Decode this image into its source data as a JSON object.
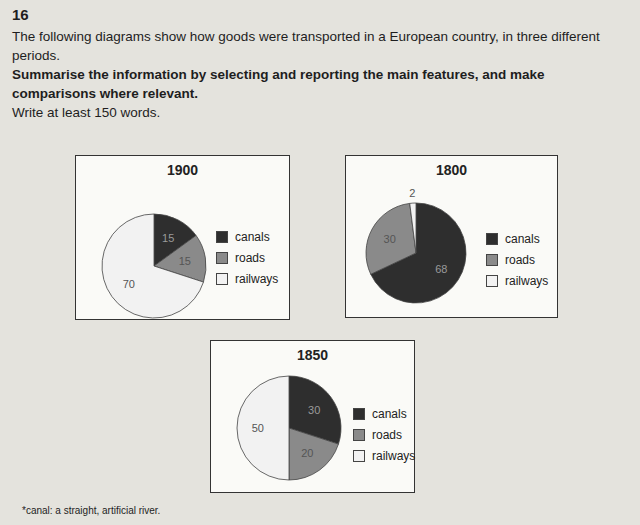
{
  "page": {
    "number": "16",
    "intro": "The following diagrams show how goods were transported in a European country, in three different periods.",
    "task": "Summarise the information by selecting and reporting the main features, and make comparisons where relevant.",
    "length": "Write at least 150 words.",
    "footnote": "*canal: a straight, artificial river."
  },
  "chart_data": [
    {
      "type": "pie",
      "title": "1900",
      "categories": [
        "canals",
        "roads",
        "railways"
      ],
      "values": [
        15,
        15,
        70
      ],
      "colors": [
        "#2e2e2e",
        "#8a8a8a",
        "#f2f2f2"
      ],
      "data_labels": true,
      "legend": "right"
    },
    {
      "type": "pie",
      "title": "1800",
      "categories": [
        "canals",
        "roads",
        "railways"
      ],
      "values": [
        68,
        30,
        2
      ],
      "colors": [
        "#2e2e2e",
        "#8a8a8a",
        "#f2f2f2"
      ],
      "data_labels": true,
      "legend": "right"
    },
    {
      "type": "pie",
      "title": "1850",
      "categories": [
        "canals",
        "roads",
        "railways"
      ],
      "values": [
        30,
        20,
        50
      ],
      "colors": [
        "#2e2e2e",
        "#8a8a8a",
        "#f2f2f2"
      ],
      "data_labels": true,
      "legend": "right"
    }
  ]
}
